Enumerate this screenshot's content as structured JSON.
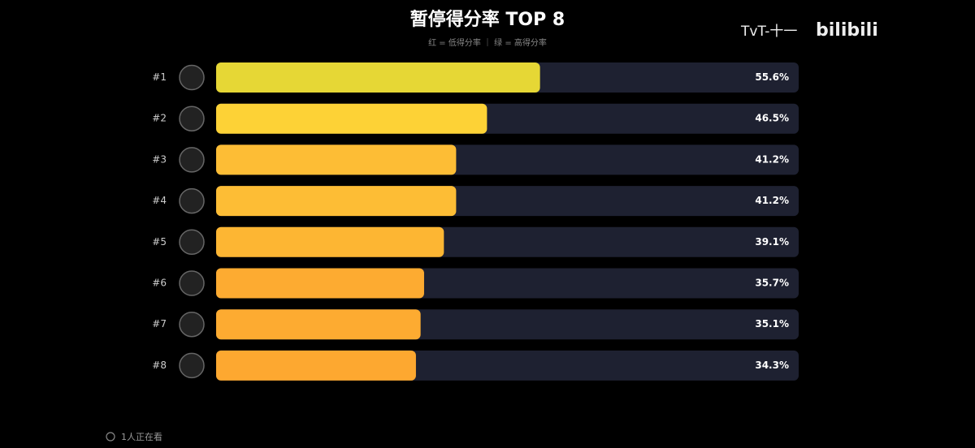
{
  "chart_data": {
    "type": "bar",
    "orientation": "horizontal",
    "title": "暂停得分率 TOP 8",
    "subtitle": "红 = 低得分率 ｜ 绿 = 高得分率",
    "categories": [
      "#1",
      "#2",
      "#3",
      "#4",
      "#5",
      "#6",
      "#7",
      "#8"
    ],
    "values": [
      55.6,
      46.5,
      41.2,
      41.2,
      39.1,
      35.7,
      35.1,
      34.3
    ],
    "value_labels": [
      "55.6%",
      "46.5%",
      "41.2%",
      "41.2%",
      "39.1%",
      "35.7%",
      "35.1%",
      "34.3%"
    ],
    "colors": [
      "#e6d735",
      "#fdd236",
      "#fdbd35",
      "#fdbd35",
      "#fdb633",
      "#fdab31",
      "#fdab31",
      "#fda830"
    ],
    "xlim": [
      0,
      100
    ]
  },
  "watermark": {
    "uploader": "TvT-十一",
    "site": "bilibili"
  },
  "viewers": "1人正在看"
}
